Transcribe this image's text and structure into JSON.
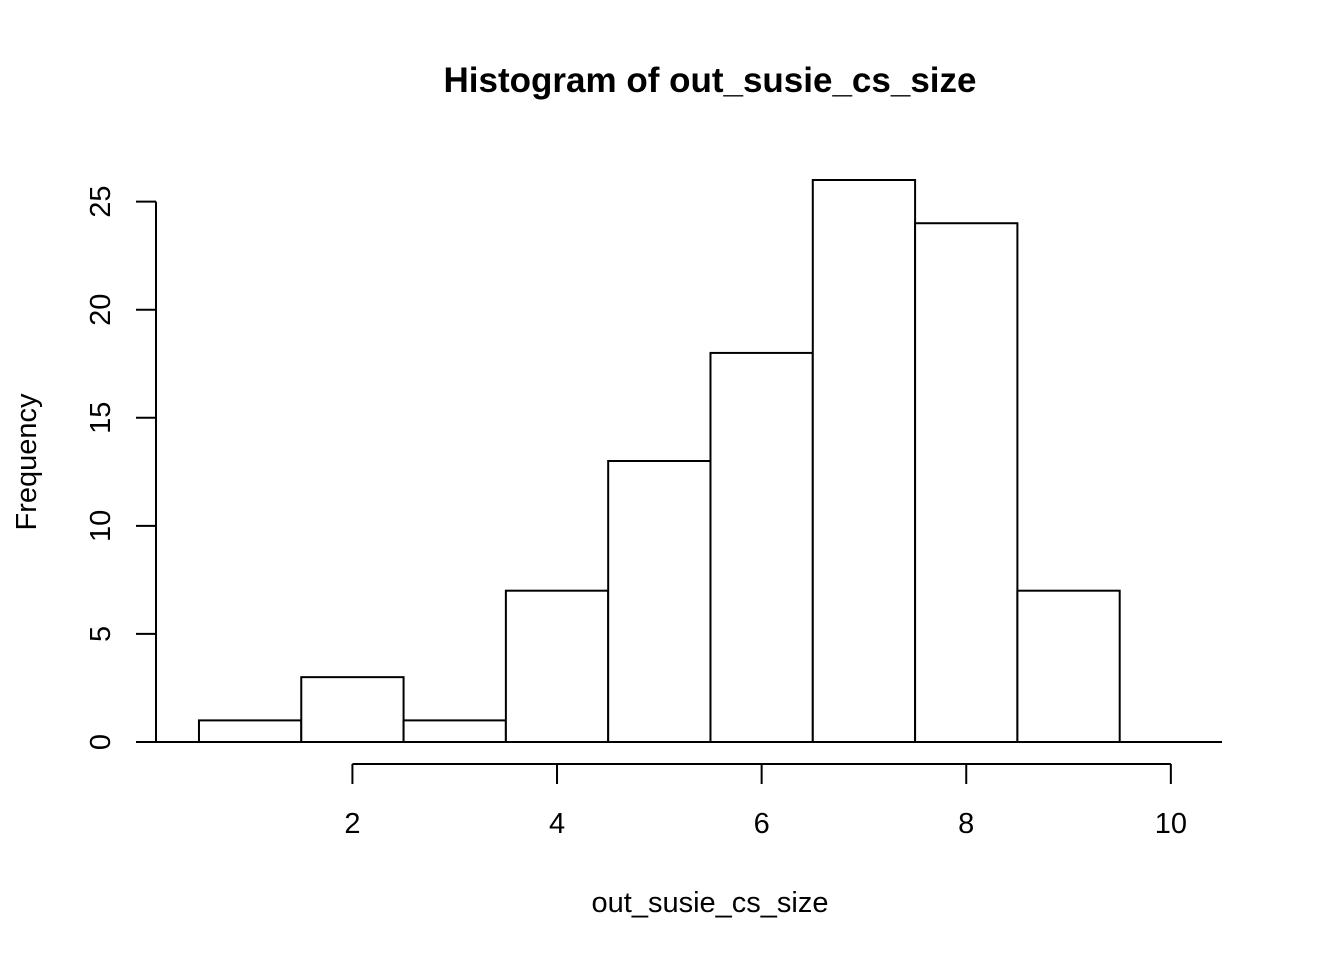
{
  "chart_data": {
    "type": "bar",
    "title": "Histogram of out_susie_cs_size",
    "xlabel": "out_susie_cs_size",
    "ylabel": "Frequency",
    "bins": [
      {
        "from": 0.5,
        "to": 1.5,
        "count": 1
      },
      {
        "from": 1.5,
        "to": 2.5,
        "count": 3
      },
      {
        "from": 2.5,
        "to": 3.5,
        "count": 1
      },
      {
        "from": 3.5,
        "to": 4.5,
        "count": 7
      },
      {
        "from": 4.5,
        "to": 5.5,
        "count": 13
      },
      {
        "from": 5.5,
        "to": 6.5,
        "count": 18
      },
      {
        "from": 6.5,
        "to": 7.5,
        "count": 26
      },
      {
        "from": 7.5,
        "to": 8.5,
        "count": 24
      },
      {
        "from": 8.5,
        "to": 9.5,
        "count": 7
      }
    ],
    "xticks": [
      2,
      4,
      6,
      8,
      10
    ],
    "yticks": [
      0,
      5,
      10,
      15,
      20,
      25
    ],
    "xlim": [
      0.08,
      10.5
    ],
    "ylim": [
      0,
      26
    ],
    "grid": false,
    "colors": {
      "bar_fill": "#ffffff",
      "bar_stroke": "#000000"
    }
  }
}
